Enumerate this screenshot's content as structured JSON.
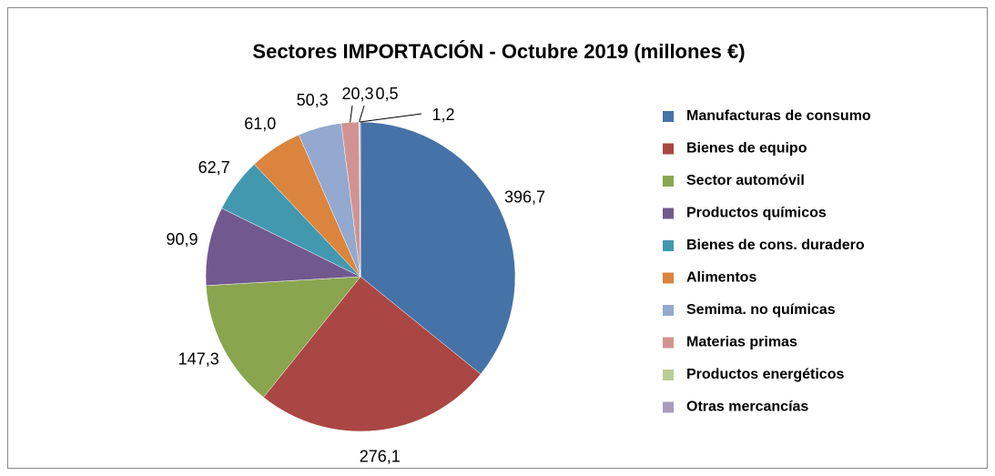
{
  "chart_data": {
    "type": "pie",
    "title": "Sectores IMPORTACIÓN - Octubre 2019 (millones €)",
    "categories": [
      "Manufacturas de consumo",
      "Bienes de equipo",
      "Sector automóvil",
      "Productos químicos",
      "Bienes de cons. duradero",
      "Alimentos",
      "Semima. no químicas",
      "Materias primas",
      "Productos energéticos",
      "Otras mercancías"
    ],
    "values": [
      396.7,
      276.1,
      147.3,
      90.9,
      62.7,
      61.0,
      50.3,
      20.3,
      0.5,
      1.2
    ],
    "value_labels": [
      "396,7",
      "276,1",
      "147,3",
      "90,9",
      "62,7",
      "61,0",
      "50,3",
      "20,3",
      "0,5",
      "1,2"
    ],
    "colors": [
      "#4572a7",
      "#aa4643",
      "#89a54e",
      "#71588f",
      "#4198af",
      "#db843d",
      "#93a9cf",
      "#d19392",
      "#b9cd96",
      "#a99bbd"
    ],
    "legend": "right"
  }
}
